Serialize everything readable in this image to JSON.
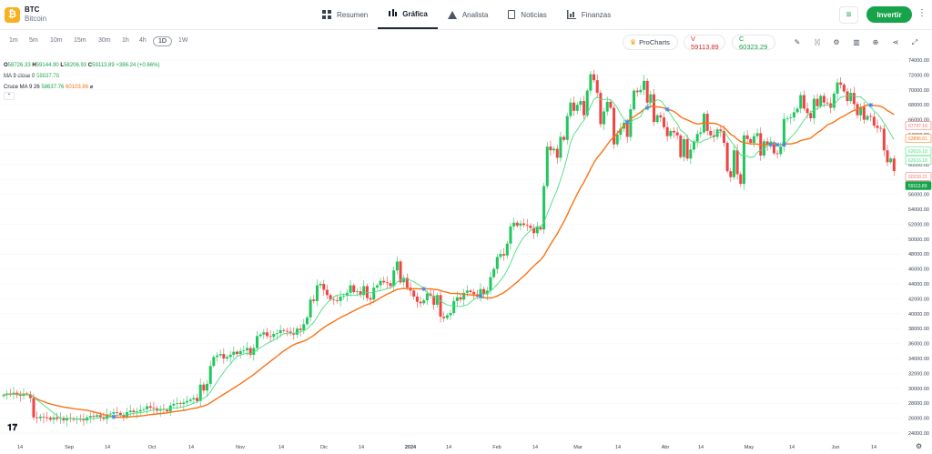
{
  "asset": {
    "symbol": "BTC",
    "name": "Bitcoin",
    "logo_glyph": "₿",
    "logo_color": "#f7b11e"
  },
  "nav": [
    {
      "label": "Resumen",
      "icon": "grid-icon"
    },
    {
      "label": "Gráfica",
      "icon": "candlestick-icon",
      "active": true
    },
    {
      "label": "Analista",
      "icon": "flask-icon"
    },
    {
      "label": "Noticias",
      "icon": "news-icon"
    },
    {
      "label": "Finanzas",
      "icon": "bar-chart-icon"
    }
  ],
  "header": {
    "invest_label": "Invertir",
    "accent": "#16a34a"
  },
  "timeframes": [
    "1m",
    "5m",
    "10m",
    "15m",
    "30m",
    "1h",
    "4h",
    "1D",
    "1W"
  ],
  "active_timeframe": "1D",
  "toolbar": {
    "prochart_label": "ProCharts",
    "sell_label": "V 59113.89",
    "buy_label": "C 60323.29"
  },
  "legend": {
    "o_label": "O",
    "o": "58726.33",
    "h_label": "H",
    "h": "59144.90",
    "l_label": "L",
    "l": "58206.93",
    "c_label": "C",
    "c": "59113.89",
    "change": "+386.24 (+0.66%)",
    "ma_label": "MA 9 close 0",
    "ma_value": "58637.76",
    "cross_label": "Cruce MA 9 26",
    "cross_fast": "58637.76",
    "cross_slow": "60103.86",
    "cross_suffix": "⌀"
  },
  "chart_data": {
    "type": "candlestick",
    "y_axis_labels": [
      "74000.00",
      "72000.00",
      "70000.00",
      "68000.00",
      "66000.00",
      "64000.00",
      "62000.00",
      "60000.00",
      "58000.00",
      "56000.00",
      "54000.00",
      "52000.00",
      "50000.00",
      "48000.00",
      "46000.00",
      "44000.00",
      "42000.00",
      "40000.00",
      "38000.00",
      "36000.00",
      "34000.00",
      "32000.00",
      "30000.00",
      "28000.00",
      "26000.00",
      "24000.00"
    ],
    "ylim": [
      24000,
      75000
    ],
    "x_axis_labels": [
      "14",
      "Sep",
      "14",
      "Oct",
      "14",
      "Nov",
      "14",
      "Dic",
      "14",
      "2024",
      "14",
      "Feb",
      "14",
      "Mar",
      "14",
      "Abr",
      "14",
      "May",
      "14",
      "Jun",
      "14"
    ],
    "series": [
      {
        "name": "MA 9",
        "color": "#4ade80"
      },
      {
        "name": "Cruce MA 26",
        "color": "#f97316"
      }
    ],
    "price_tags": [
      {
        "value": "67797.18",
        "color": "#f87171"
      },
      {
        "value": "63896.61",
        "color": "#f97316"
      },
      {
        "value": "62616.18",
        "color": "#4ade80"
      },
      {
        "value": "62616.18",
        "color": "#4ade80"
      },
      {
        "value": "60339.21",
        "color": "#f87171"
      },
      {
        "value": "59113.89",
        "color": "#16a34a",
        "filled": true
      }
    ],
    "closes": [
      29100,
      29300,
      29200,
      29400,
      29100,
      29000,
      29300,
      29200,
      28700,
      26100,
      26000,
      26200,
      26100,
      26050,
      25800,
      26100,
      25900,
      26000,
      25700,
      26000,
      25950,
      25800,
      25900,
      25850,
      25700,
      26100,
      26300,
      26200,
      26400,
      26150,
      25900,
      26500,
      26600,
      26800,
      26700,
      26400,
      26200,
      26800,
      27000,
      26800,
      26900,
      27100,
      27200,
      27600,
      27400,
      27300,
      27000,
      27200,
      27100,
      26900,
      27700,
      27900,
      28000,
      27900,
      28100,
      28300,
      28500,
      28700,
      28300,
      30500,
      29700,
      30600,
      33000,
      34200,
      34400,
      34600,
      34000,
      34200,
      34500,
      34900,
      34600,
      35000,
      35100,
      35400,
      34500,
      35400,
      37000,
      37200,
      37500,
      37000,
      36900,
      37300,
      37400,
      37800,
      37700,
      37600,
      37400,
      37200,
      38000,
      37800,
      38600,
      39500,
      41900,
      41700,
      43800,
      44000,
      43200,
      42500,
      41900,
      41800,
      41700,
      42300,
      42400,
      42800,
      43800,
      42900,
      43000,
      42500,
      43700,
      42100,
      41900,
      43500,
      43800,
      44400,
      44200,
      44100,
      43700,
      45800,
      47000,
      44200,
      44800,
      43500,
      43100,
      42300,
      41600,
      41400,
      41800,
      42700,
      42400,
      41200,
      42500,
      39600,
      39400,
      39800,
      40100,
      41700,
      42200,
      41900,
      42800,
      43100,
      42900,
      42600,
      42300,
      43300,
      42600,
      43100,
      44900,
      46000,
      47600,
      48000,
      47800,
      49400,
      51700,
      52200,
      51800,
      52100,
      51900,
      51800,
      51500,
      50800,
      51600,
      51300,
      57100,
      62400,
      61900,
      62100,
      60900,
      63700,
      63300,
      66500,
      68300,
      67200,
      68000,
      68500,
      66600,
      69900,
      72100,
      71300,
      69600,
      65400,
      67100,
      68400,
      67600,
      62700,
      64000,
      64800,
      65600,
      63700,
      67400,
      69900,
      69700,
      70000,
      71200,
      68300,
      69400,
      65700,
      66600,
      66300,
      65000,
      63800,
      64500,
      64300,
      63900,
      61000,
      63400,
      60800,
      62000,
      63100,
      64100,
      64300,
      66800,
      64500,
      63900,
      63700,
      64700,
      64500,
      62900,
      59100,
      58300,
      61900,
      58700,
      57400,
      63900,
      63400,
      62900,
      63800,
      64200,
      61200,
      63100,
      62600,
      63000,
      61500,
      61400,
      62400,
      66100,
      66200,
      66300,
      67000,
      67500,
      69300,
      67500,
      66900,
      66200,
      68800,
      67800,
      69200,
      68300,
      68200,
      67600,
      69500,
      71000,
      70700,
      69800,
      68500,
      69600,
      68100,
      66600,
      67700,
      66000,
      66500,
      66400,
      65200,
      64900,
      64800,
      61900,
      60300,
      60800,
      59113
    ]
  }
}
